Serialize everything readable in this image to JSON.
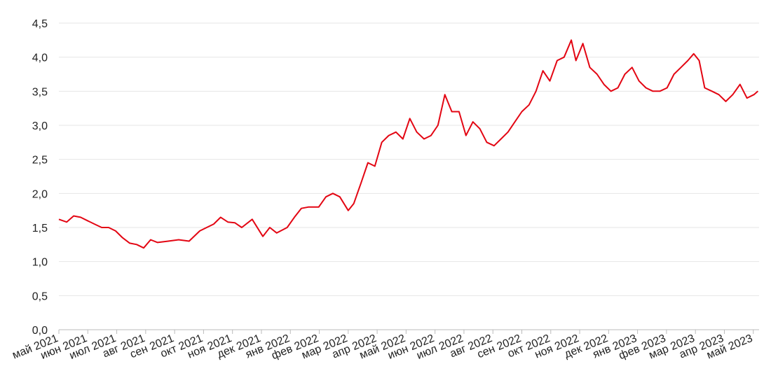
{
  "chart_data": {
    "type": "line",
    "x": [
      0,
      0.27,
      0.51,
      0.75,
      0.99,
      1.23,
      1.48,
      1.72,
      1.96,
      2.2,
      2.45,
      2.69,
      2.93,
      3.17,
      3.41,
      3.78,
      4.14,
      4.5,
      4.87,
      5.11,
      5.35,
      5.59,
      5.84,
      6.08,
      6.32,
      6.68,
      7.05,
      7.29,
      7.53,
      7.89,
      8.14,
      8.38,
      8.62,
      8.98,
      9.23,
      9.47,
      9.71,
      10.0,
      10.19,
      10.44,
      10.68,
      10.92,
      11.16,
      11.4,
      11.65,
      11.89,
      12.13,
      12.37,
      12.62,
      12.86,
      13.1,
      13.34,
      13.58,
      13.83,
      14.07,
      14.31,
      14.55,
      14.79,
      15.04,
      15.28,
      15.52,
      15.76,
      16.0,
      16.25,
      16.49,
      16.73,
      16.97,
      17.22,
      17.46,
      17.71,
      17.87,
      18.11,
      18.35,
      18.6,
      18.84,
      19.08,
      19.32,
      19.56,
      19.81,
      20.05,
      20.29,
      20.53,
      20.77,
      21.02,
      21.26,
      21.5,
      21.74,
      21.94,
      22.13,
      22.32,
      22.57,
      22.81,
      23.05,
      23.29,
      23.54,
      23.78,
      24.02,
      24.16
    ],
    "series": [
      {
        "color": "#e30613",
        "values": [
          1.62,
          1.58,
          1.67,
          1.65,
          1.6,
          1.55,
          1.5,
          1.5,
          1.45,
          1.35,
          1.27,
          1.25,
          1.2,
          1.32,
          1.28,
          1.3,
          1.32,
          1.3,
          1.45,
          1.5,
          1.55,
          1.65,
          1.58,
          1.57,
          1.5,
          1.62,
          1.37,
          1.5,
          1.42,
          1.5,
          1.65,
          1.78,
          1.8,
          1.8,
          1.95,
          2.0,
          1.95,
          1.75,
          1.85,
          2.15,
          2.45,
          2.4,
          2.75,
          2.85,
          2.9,
          2.8,
          3.1,
          2.9,
          2.8,
          2.85,
          3.0,
          3.45,
          3.2,
          3.2,
          2.85,
          3.05,
          2.95,
          2.75,
          2.7,
          2.8,
          2.9,
          3.05,
          3.2,
          3.3,
          3.5,
          3.8,
          3.65,
          3.95,
          4.0,
          4.25,
          3.95,
          4.2,
          3.85,
          3.75,
          3.6,
          3.5,
          3.55,
          3.75,
          3.85,
          3.65,
          3.55,
          3.5,
          3.5,
          3.55,
          3.75,
          3.85,
          3.95,
          4.05,
          3.95,
          3.55,
          3.5,
          3.45,
          3.35,
          3.45,
          3.6,
          3.4,
          3.45,
          3.5
        ]
      }
    ],
    "xlim": [
      0,
      24.2
    ],
    "xticks": [
      {
        "value": 0,
        "label": "май 2021"
      },
      {
        "value": 1,
        "label": "июн 2021"
      },
      {
        "value": 2,
        "label": "июл 2021"
      },
      {
        "value": 3,
        "label": "авг 2021"
      },
      {
        "value": 4,
        "label": "сен 2021"
      },
      {
        "value": 5,
        "label": "окт 2021"
      },
      {
        "value": 6,
        "label": "ноя 2021"
      },
      {
        "value": 7,
        "label": "дек 2021"
      },
      {
        "value": 8,
        "label": "янв 2022"
      },
      {
        "value": 9,
        "label": "фев 2022"
      },
      {
        "value": 10,
        "label": "мар 2022"
      },
      {
        "value": 11,
        "label": "апр 2022"
      },
      {
        "value": 12,
        "label": "май 2022"
      },
      {
        "value": 13,
        "label": "июн 2022"
      },
      {
        "value": 14,
        "label": "июл 2022"
      },
      {
        "value": 15,
        "label": "авг 2022"
      },
      {
        "value": 16,
        "label": "сен 2022"
      },
      {
        "value": 17,
        "label": "окт 2022"
      },
      {
        "value": 18,
        "label": "ноя 2022"
      },
      {
        "value": 19,
        "label": "дек 2022"
      },
      {
        "value": 20,
        "label": "янв 2023"
      },
      {
        "value": 21,
        "label": "фев 2023"
      },
      {
        "value": 22,
        "label": "мар 2023"
      },
      {
        "value": 23,
        "label": "апр 2023"
      },
      {
        "value": 24,
        "label": "май 2023"
      }
    ],
    "ylim": [
      0,
      4.5
    ],
    "yticks": [
      {
        "value": 0,
        "label": "0,0"
      },
      {
        "value": 0.5,
        "label": "0,5"
      },
      {
        "value": 1,
        "label": "1,0"
      },
      {
        "value": 1.5,
        "label": "1,5"
      },
      {
        "value": 2,
        "label": "2,0"
      },
      {
        "value": 2.5,
        "label": "2,5"
      },
      {
        "value": 3,
        "label": "3,0"
      },
      {
        "value": 3.5,
        "label": "3,5"
      },
      {
        "value": 4,
        "label": "4,0"
      },
      {
        "value": 4.5,
        "label": "4,5"
      }
    ],
    "grid": true
  }
}
